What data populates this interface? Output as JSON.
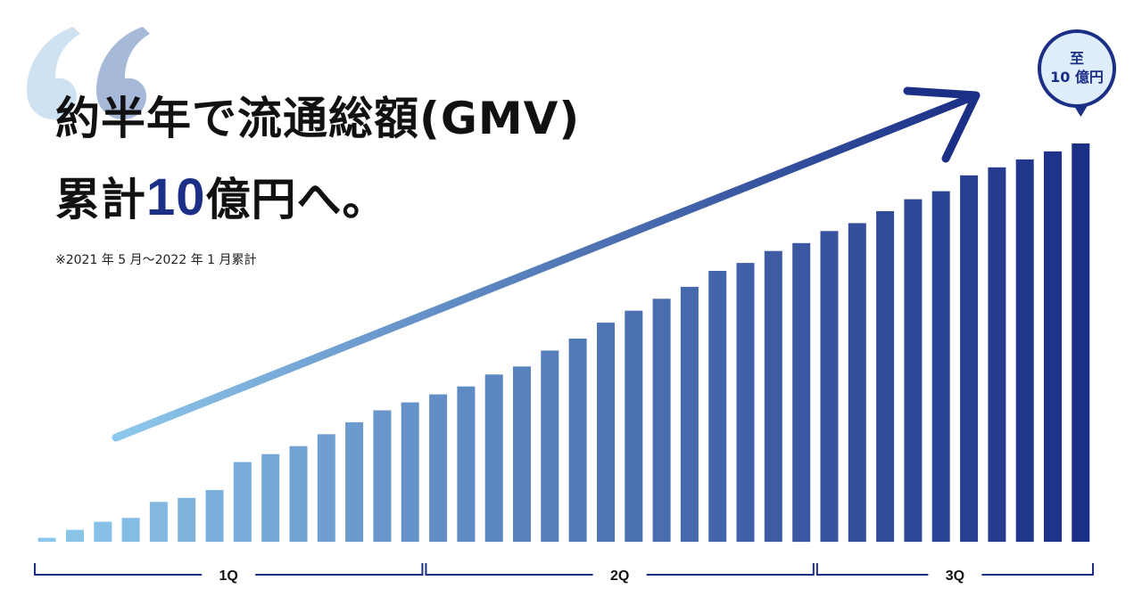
{
  "headline": {
    "line1": "約半年で流通総額(GMV)",
    "line2_prefix": "累計",
    "line2_number": "10",
    "line2_suffix": "億円へ。"
  },
  "note": "※2021 年 5 月～2022 年 1 月累計",
  "badge": {
    "line1": "至",
    "line2": "10 億円"
  },
  "colors": {
    "bar_start": "#8dc8ec",
    "bar_end": "#1b2f86",
    "bracket": "#1b2f86",
    "accent": "#1b2f86"
  },
  "chart_data": {
    "type": "bar",
    "ylim": [
      0,
      10
    ],
    "values": [
      0.1,
      0.3,
      0.5,
      0.6,
      1.0,
      1.1,
      1.3,
      2.0,
      2.2,
      2.4,
      2.7,
      3.0,
      3.3,
      3.5,
      3.7,
      3.9,
      4.2,
      4.4,
      4.8,
      5.1,
      5.5,
      5.8,
      6.1,
      6.4,
      6.8,
      7.0,
      7.3,
      7.5,
      7.8,
      8.0,
      8.3,
      8.6,
      8.8,
      9.2,
      9.4,
      9.6,
      9.8,
      10.0
    ],
    "groups": [
      {
        "label": "1Q",
        "start": 0,
        "end": 13
      },
      {
        "label": "2Q",
        "start": 14,
        "end": 27
      },
      {
        "label": "3Q",
        "start": 28,
        "end": 37
      }
    ]
  }
}
